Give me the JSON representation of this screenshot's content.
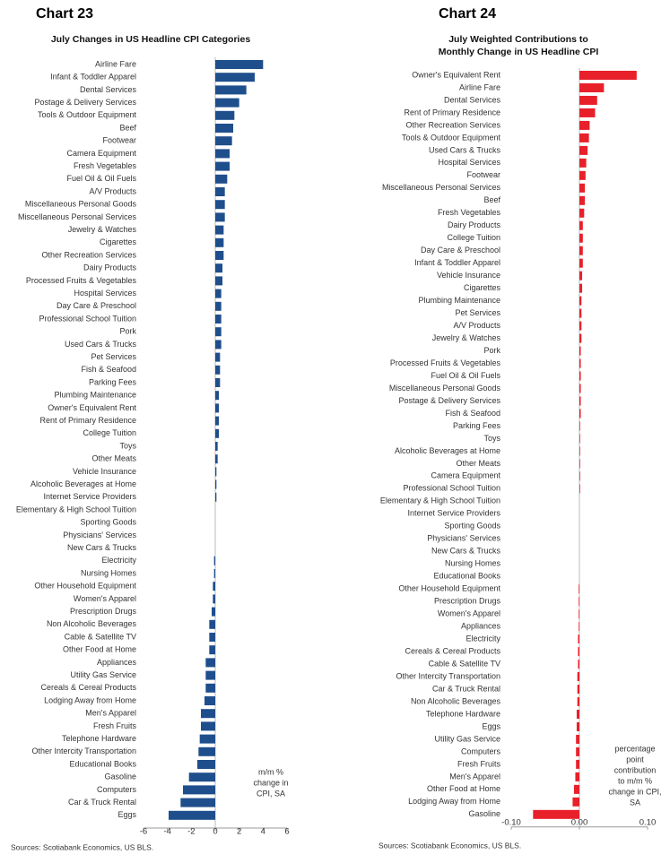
{
  "chart_data": [
    {
      "type": "bar",
      "orientation": "horizontal",
      "label": "Chart 23",
      "title": [
        "July  Changes in US Headline CPI Categories"
      ],
      "annotation": [
        "m/m %",
        "change in",
        "CPI, SA"
      ],
      "source": "Sources: Scotiabank Economics, US BLS.",
      "color": "#1f4e8c",
      "categories": [
        "Airline Fare",
        "Infant & Toddler Apparel",
        "Dental Services",
        "Postage & Delivery Services",
        "Tools & Outdoor Equipment",
        "Beef",
        "Footwear",
        "Camera Equipment",
        "Fresh Vegetables",
        "Fuel Oil & Oil Fuels",
        "A/V Products",
        "Miscellaneous Personal Goods",
        "Miscellaneous Personal Services",
        "Jewelry & Watches",
        "Cigarettes",
        "Other Recreation Services",
        "Dairy Products",
        "Processed Fruits & Vegetables",
        "Hospital Services",
        "Day Care & Preschool",
        "Professional School Tuition",
        "Pork",
        "Used Cars & Trucks",
        "Pet Services",
        "Fish & Seafood",
        "Parking Fees",
        "Plumbing Maintenance",
        "Owner's Equivalent Rent",
        "Rent of Primary Residence",
        "College Tuition",
        "Toys",
        "Other Meats",
        "Vehicle Insurance",
        "Alcoholic Beverages at Home",
        "Internet Service Providers",
        "Elementary & High School Tuition",
        "Sporting Goods",
        "Physicians' Services",
        "New Cars & Trucks",
        "Electricity",
        "Nursing Homes",
        "Other Household Equipment",
        "Women's Apparel",
        "Prescription Drugs",
        "Non Alcoholic Beverages",
        "Cable & Satellite TV",
        "Other Food at Home",
        "Appliances",
        "Utility Gas Service",
        "Cereals & Cereal Products",
        "Lodging Away from Home",
        "Men's Apparel",
        "Fresh Fruits",
        "Telephone Hardware",
        "Other Intercity Transportation",
        "Educational Books",
        "Gasoline",
        "Computers",
        "Car & Truck Rental",
        "Eggs"
      ],
      "values": [
        4.0,
        3.3,
        2.6,
        2.0,
        1.6,
        1.5,
        1.4,
        1.2,
        1.2,
        1.0,
        0.8,
        0.8,
        0.8,
        0.7,
        0.7,
        0.7,
        0.6,
        0.6,
        0.5,
        0.5,
        0.5,
        0.5,
        0.5,
        0.4,
        0.4,
        0.4,
        0.3,
        0.3,
        0.3,
        0.3,
        0.2,
        0.2,
        0.1,
        0.1,
        0.1,
        0.0,
        0.0,
        0.0,
        0.0,
        -0.1,
        -0.1,
        -0.2,
        -0.2,
        -0.3,
        -0.5,
        -0.5,
        -0.5,
        -0.8,
        -0.8,
        -0.8,
        -0.9,
        -1.2,
        -1.2,
        -1.3,
        -1.4,
        -1.5,
        -2.2,
        -2.7,
        -2.9,
        -3.9
      ],
      "xlim": [
        -6,
        6
      ],
      "xticks": [
        -6,
        -4,
        -2,
        0,
        2,
        4,
        6
      ]
    },
    {
      "type": "bar",
      "orientation": "horizontal",
      "label": "Chart 24",
      "title": [
        "July  Weighted Contributions to",
        "Monthly Change in US Headline CPI"
      ],
      "annotation": [
        "percentage",
        "point",
        "contribution",
        "to m/m %",
        "change in CPI,",
        "SA"
      ],
      "source": "Sources: Scotiabank Economics, US BLS.",
      "color": "#e8202a",
      "categories": [
        "Owner's Equivalent Rent",
        "Airline Fare",
        "Dental Services",
        "Rent of Primary Residence",
        "Other Recreation Services",
        "Tools & Outdoor Equipment",
        "Used Cars & Trucks",
        "Hospital Services",
        "Footwear",
        "Miscellaneous Personal Services",
        "Beef",
        "Fresh Vegetables",
        "Dairy Products",
        "College Tuition",
        "Day Care & Preschool",
        "Infant & Toddler Apparel",
        "Vehicle Insurance",
        "Cigarettes",
        "Plumbing Maintenance",
        "Pet Services",
        "A/V Products",
        "Jewelry & Watches",
        "Pork",
        "Processed Fruits & Vegetables",
        "Fuel Oil & Oil Fuels",
        "Miscellaneous Personal Goods",
        "Postage & Delivery Services",
        "Fish & Seafood",
        "Parking Fees",
        "Toys",
        "Alcoholic Beverages at Home",
        "Other Meats",
        "Camera Equipment",
        "Professional School Tuition",
        "Elementary & High School Tuition",
        "Internet Service Providers",
        "Sporting Goods",
        "Physicians' Services",
        "New Cars & Trucks",
        "Nursing Homes",
        "Educational Books",
        "Other Household Equipment",
        "Prescription Drugs",
        "Women's Apparel",
        "Appliances",
        "Electricity",
        "Cereals & Cereal Products",
        "Cable & Satellite TV",
        "Other Intercity Transportation",
        "Car & Truck Rental",
        "Non Alcoholic Beverages",
        "Telephone Hardware",
        "Eggs",
        "Utility Gas Service",
        "Computers",
        "Fresh Fruits",
        "Men's Apparel",
        "Other Food at Home",
        "Lodging Away from Home",
        "Gasoline"
      ],
      "values": [
        0.084,
        0.036,
        0.026,
        0.023,
        0.015,
        0.014,
        0.012,
        0.01,
        0.009,
        0.008,
        0.008,
        0.007,
        0.005,
        0.005,
        0.005,
        0.005,
        0.004,
        0.004,
        0.003,
        0.003,
        0.003,
        0.003,
        0.002,
        0.002,
        0.002,
        0.002,
        0.002,
        0.002,
        0.001,
        0.001,
        0.001,
        0.001,
        0.001,
        0.001,
        0.0,
        0.0,
        0.0,
        0.0,
        0.0,
        0.0,
        0.0,
        -0.001,
        -0.001,
        -0.001,
        -0.001,
        -0.002,
        -0.002,
        -0.002,
        -0.003,
        -0.003,
        -0.003,
        -0.004,
        -0.004,
        -0.005,
        -0.005,
        -0.005,
        -0.006,
        -0.008,
        -0.01,
        -0.068
      ],
      "xlim": [
        -0.1,
        0.1
      ],
      "xticks": [
        {
          "value": -0.1,
          "label": "-0.10"
        },
        {
          "value": 0,
          "label": "0.00"
        },
        {
          "value": 0.1,
          "label": "0.10"
        }
      ]
    }
  ]
}
